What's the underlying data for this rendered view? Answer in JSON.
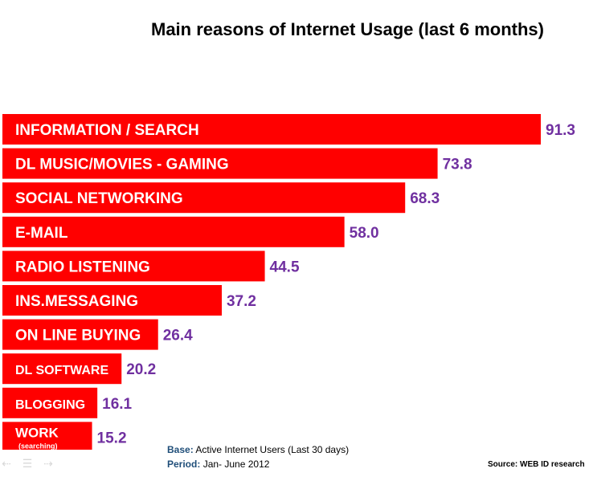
{
  "chart_data": {
    "type": "bar",
    "orientation": "horizontal",
    "title": "Main reasons of Internet Usage (last 6 months)",
    "categories": [
      "INFORMATION / SEARCH",
      "DL MUSIC/MOVIES - GAMING",
      "SOCIAL NETWORKING",
      "E-MAIL",
      "RADIO LISTENING",
      "INS.MESSAGING",
      "ON LINE BUYING",
      "DL SOFTWARE",
      "BLOGGING",
      "WORK"
    ],
    "category_sublabels": {
      "WORK": "(searching)"
    },
    "values": [
      91.3,
      73.8,
      68.3,
      58.0,
      44.5,
      37.2,
      26.4,
      20.2,
      16.1,
      15.2
    ],
    "value_labels": [
      "91.3",
      "73.8",
      "68.3",
      "58.0",
      "44.5",
      "37.2",
      "26.4",
      "20.2",
      "16.1",
      "15.2"
    ],
    "xlim": [
      0,
      100
    ],
    "grid": false,
    "legend": "none",
    "colors": {
      "bar": "#ff0000",
      "value_text": "#7030a0"
    }
  },
  "footer": {
    "base_label": "Base:",
    "base_text": "Active Internet Users (Last 30 days)",
    "period_label": "Period:",
    "period_text": "Jan- June 2012",
    "source": "Source: WEB ID research"
  }
}
